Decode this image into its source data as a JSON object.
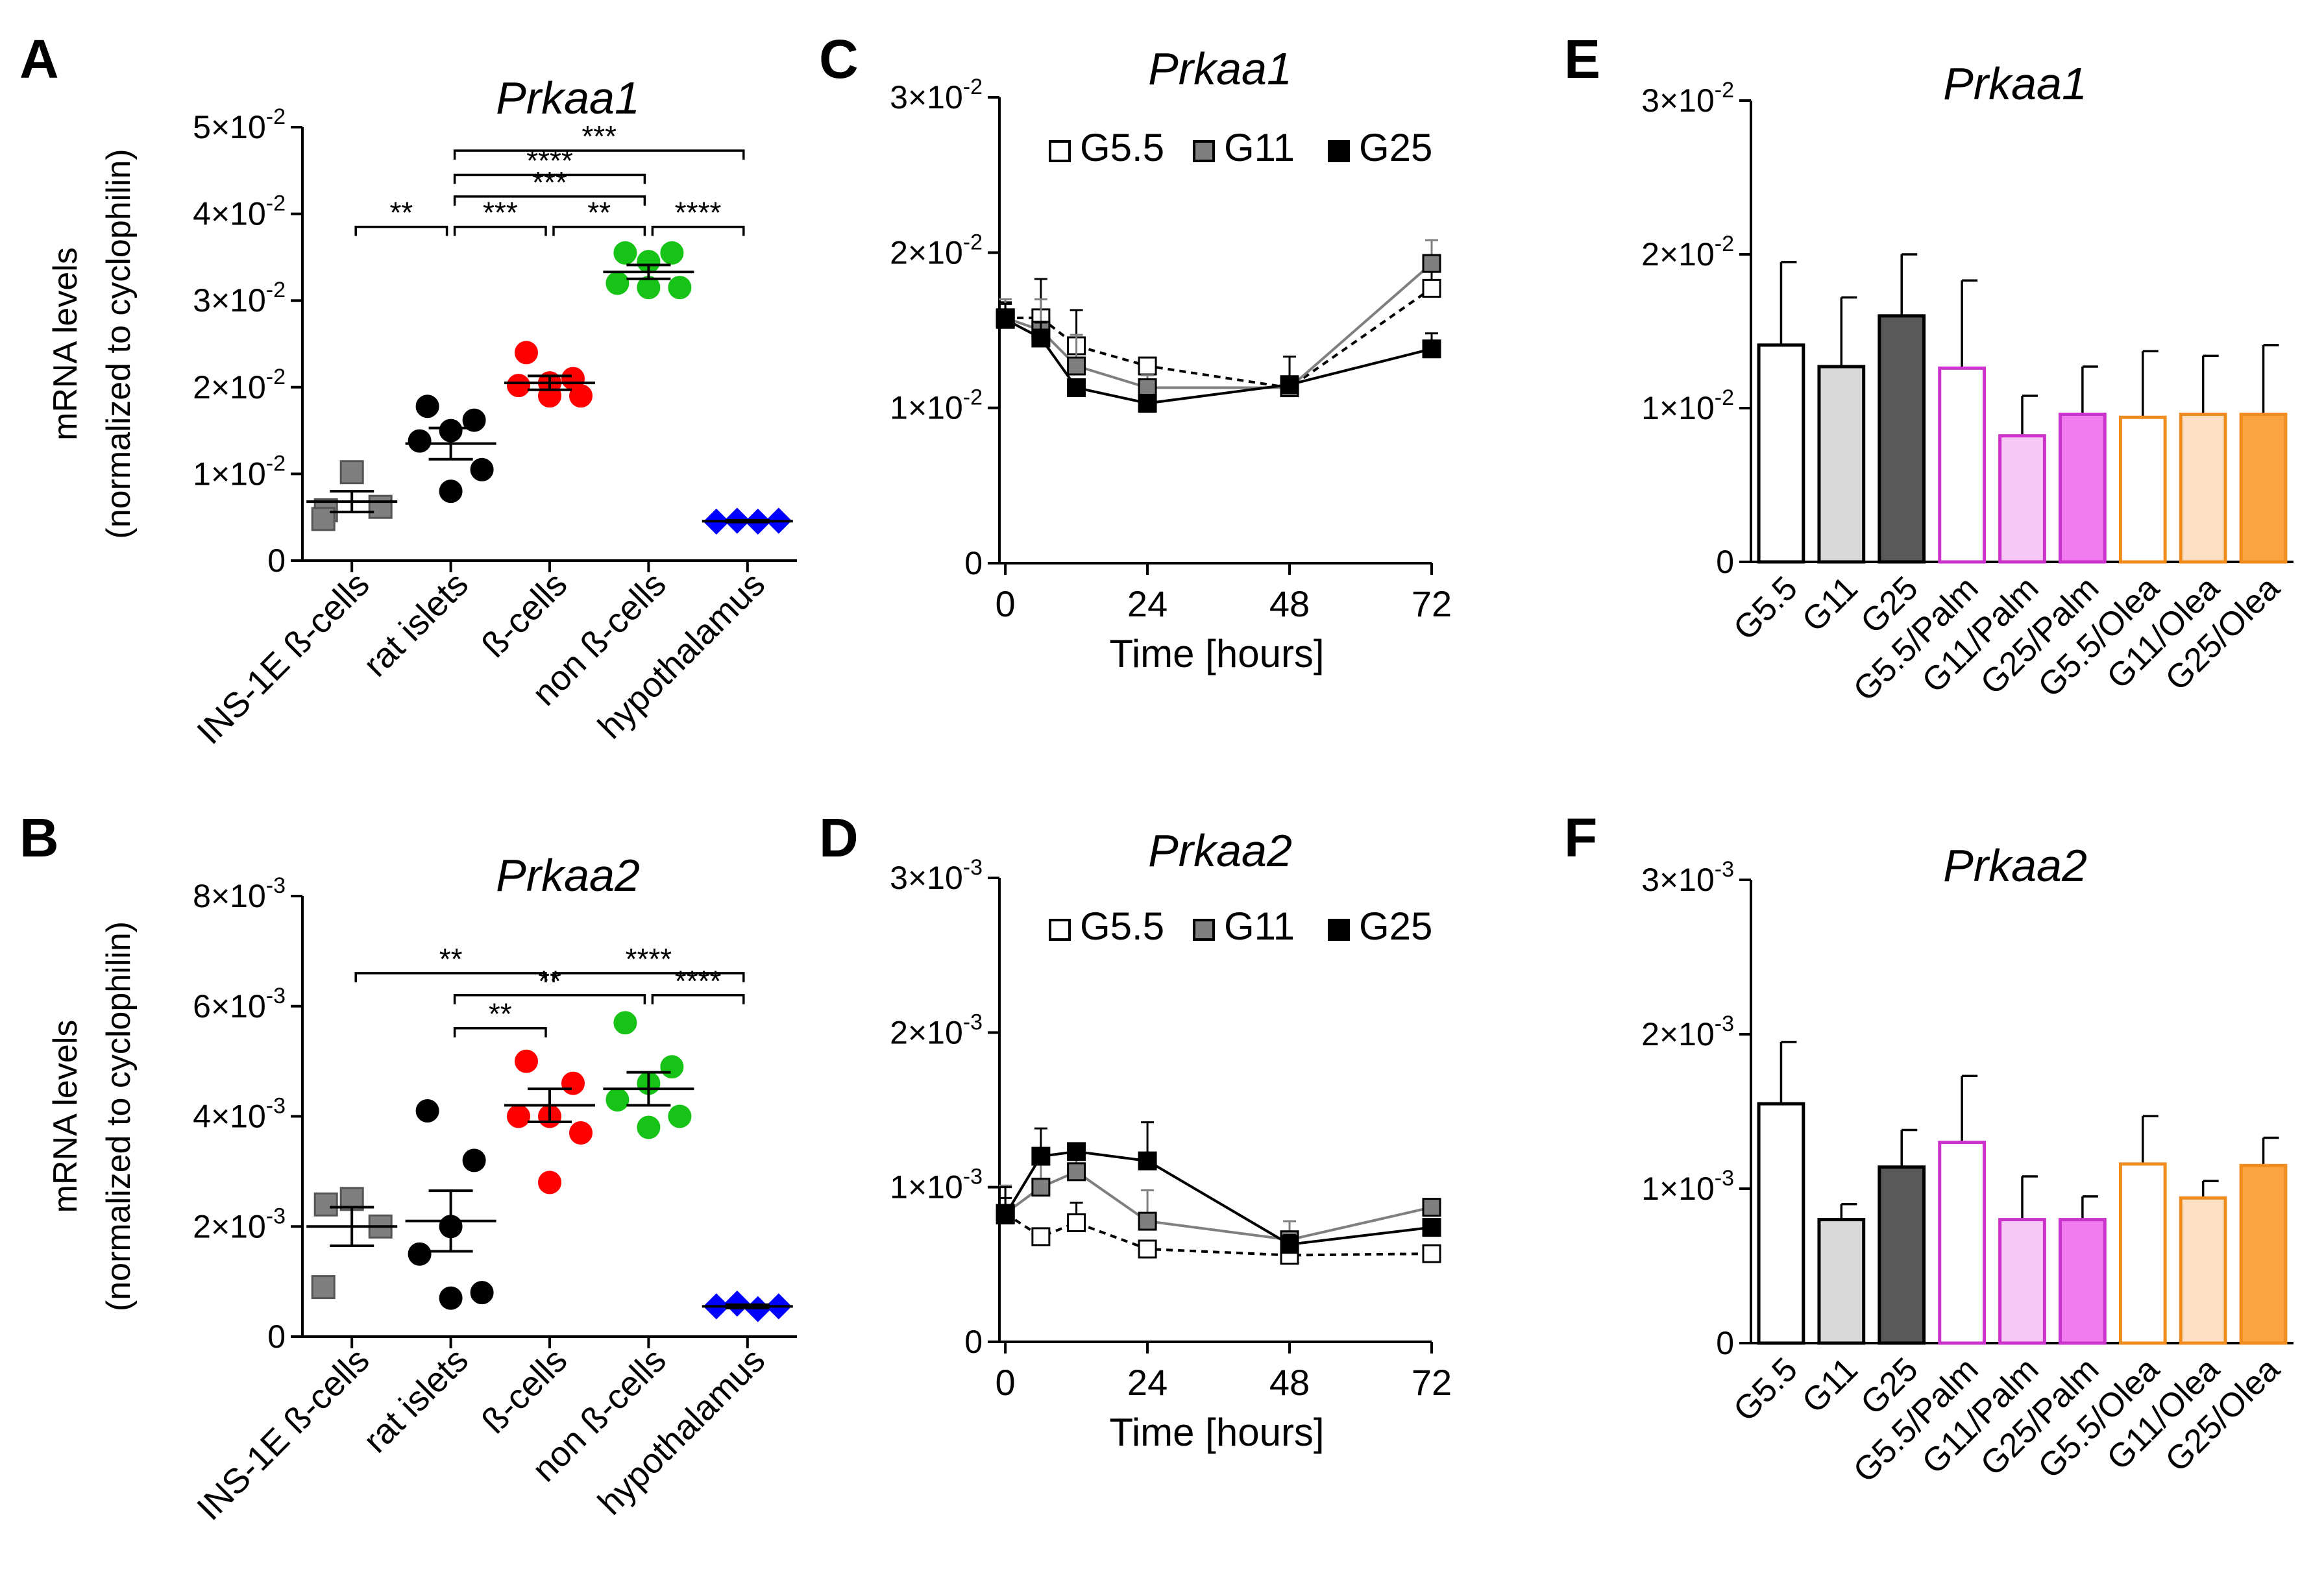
{
  "colors": {
    "axis": "#000000",
    "gray_marker": "#7f7f7f",
    "black_marker": "#000000",
    "red_marker": "#ff0000",
    "green_marker": "#16c316",
    "blue_marker": "#0000ff",
    "bar_G5_5": "#ffffff",
    "bar_G11": "#d9d9d9",
    "bar_G25": "#595959",
    "palm_edge": "#cc33cc",
    "palm_light": "#f5c8f5",
    "palm_mid": "#f07cf0",
    "olea_edge": "#f08c1e",
    "olea_light": "#fde0c4",
    "olea_mid": "#f9a441"
  },
  "chart_data": [
    {
      "panel": "A",
      "type": "scatter",
      "title": "Prkaa1",
      "ylabel_line1": "mRNA levels",
      "ylabel_line2": "(normalized to cyclophilin)",
      "ylim": [
        0,
        0.05
      ],
      "yticks": [
        {
          "value": 0,
          "mant": "0",
          "exp": ""
        },
        {
          "value": 0.01,
          "mant": "1×10",
          "exp": "-2"
        },
        {
          "value": 0.02,
          "mant": "2×10",
          "exp": "-2"
        },
        {
          "value": 0.03,
          "mant": "3×10",
          "exp": "-2"
        },
        {
          "value": 0.04,
          "mant": "4×10",
          "exp": "-2"
        },
        {
          "value": 0.05,
          "mant": "5×10",
          "exp": "-2"
        }
      ],
      "categories": [
        "INS-1E ß-cells",
        "rat islets",
        "ß-cells",
        "non ß-cells",
        "hypothalamus"
      ],
      "groups": [
        {
          "name": "INS-1E ß-cells",
          "marker": "square",
          "color": "#7f7f7f",
          "points": [
            0.0102,
            0.0058,
            0.0062,
            0.0048
          ],
          "mean": 0.0068,
          "sem": 0.0012
        },
        {
          "name": "rat islets",
          "marker": "circle",
          "color": "#000000",
          "points": [
            0.0178,
            0.0162,
            0.015,
            0.0138,
            0.0105,
            0.008
          ],
          "mean": 0.0135,
          "sem": 0.0018
        },
        {
          "name": "ß-cells",
          "marker": "circle",
          "color": "#ff0000",
          "points": [
            0.024,
            0.021,
            0.0205,
            0.0202,
            0.019,
            0.019
          ],
          "mean": 0.0205,
          "sem": 0.0008
        },
        {
          "name": "non ß-cells",
          "marker": "circle",
          "color": "#16c316",
          "points": [
            0.0355,
            0.0355,
            0.0345,
            0.032,
            0.0315,
            0.0315
          ],
          "mean": 0.0333,
          "sem": 0.0008
        },
        {
          "name": "hypothalamus",
          "marker": "diamond",
          "color": "#0000ff",
          "points": [
            0.0045,
            0.0046,
            0.0045,
            0.0046
          ],
          "mean": 0.00455,
          "sem": 0.0001
        }
      ],
      "brackets": [
        {
          "from": 0,
          "to": 1,
          "label": "**",
          "level": 0.0385
        },
        {
          "from": 1,
          "to": 2,
          "label": "***",
          "level": 0.0385
        },
        {
          "from": 2,
          "to": 3,
          "label": "**",
          "level": 0.0385
        },
        {
          "from": 3,
          "to": 4,
          "label": "****",
          "level": 0.0385
        },
        {
          "from": 1,
          "to": 3,
          "label": "***",
          "level": 0.042
        },
        {
          "from": 1,
          "to": 3,
          "label": "****",
          "level": 0.0445
        },
        {
          "from": 1,
          "to": 4,
          "label": "***",
          "level": 0.0473
        }
      ]
    },
    {
      "panel": "B",
      "type": "scatter",
      "title": "Prkaa2",
      "ylabel_line1": "mRNA levels",
      "ylabel_line2": "(normalized to cyclophilin)",
      "ylim": [
        0,
        0.008
      ],
      "yticks": [
        {
          "value": 0,
          "mant": "0",
          "exp": ""
        },
        {
          "value": 0.002,
          "mant": "2×10",
          "exp": "-3"
        },
        {
          "value": 0.004,
          "mant": "4×10",
          "exp": "-3"
        },
        {
          "value": 0.006,
          "mant": "6×10",
          "exp": "-3"
        },
        {
          "value": 0.008,
          "mant": "8×10",
          "exp": "-3"
        }
      ],
      "categories": [
        "INS-1E ß-cells",
        "rat islets",
        "ß-cells",
        "non ß-cells",
        "hypothalamus"
      ],
      "groups": [
        {
          "name": "INS-1E ß-cells",
          "marker": "square",
          "color": "#7f7f7f",
          "points": [
            0.0025,
            0.0024,
            0.002,
            0.0009
          ],
          "mean": 0.002,
          "sem": 0.00035
        },
        {
          "name": "rat islets",
          "marker": "circle",
          "color": "#000000",
          "points": [
            0.0041,
            0.0032,
            0.002,
            0.0015,
            0.0008,
            0.0007
          ],
          "mean": 0.0021,
          "sem": 0.00055
        },
        {
          "name": "ß-cells",
          "marker": "circle",
          "color": "#ff0000",
          "points": [
            0.005,
            0.0046,
            0.004,
            0.004,
            0.0037,
            0.0028
          ],
          "mean": 0.0042,
          "sem": 0.0003
        },
        {
          "name": "non ß-cells",
          "marker": "circle",
          "color": "#16c316",
          "points": [
            0.0057,
            0.0049,
            0.0046,
            0.0043,
            0.004,
            0.0038
          ],
          "mean": 0.0045,
          "sem": 0.0003
        },
        {
          "name": "hypothalamus",
          "marker": "diamond",
          "color": "#0000ff",
          "points": [
            0.00055,
            0.0006,
            0.0005,
            0.00055
          ],
          "mean": 0.00055,
          "sem": 3e-05
        }
      ],
      "brackets": [
        {
          "from": 2,
          "to": 4,
          "label": "****",
          "level": 0.0066
        },
        {
          "from": 0,
          "to": 2,
          "label": "**",
          "level": 0.0066
        },
        {
          "from": 1,
          "to": 3,
          "label": "**",
          "level": 0.0062
        },
        {
          "from": 3,
          "to": 4,
          "label": "****",
          "level": 0.0062
        },
        {
          "from": 1,
          "to": 2,
          "label": "**",
          "level": 0.0056
        }
      ]
    },
    {
      "panel": "C",
      "type": "line",
      "title": "Prkaa1",
      "xlabel": "Time [hours]",
      "xlim": [
        -1,
        72
      ],
      "xticks": [
        0,
        24,
        48,
        72
      ],
      "ylim": [
        0,
        0.03
      ],
      "yticks": [
        {
          "value": 0,
          "mant": "0",
          "exp": ""
        },
        {
          "value": 0.01,
          "mant": "1×10",
          "exp": "-2"
        },
        {
          "value": 0.02,
          "mant": "2×10",
          "exp": "-2"
        },
        {
          "value": 0.03,
          "mant": "3×10",
          "exp": "-2"
        }
      ],
      "x": [
        0,
        6,
        12,
        24,
        48,
        72
      ],
      "series": [
        {
          "name": "G5.5",
          "marker_fill": "#ffffff",
          "line": "#000000",
          "dash": "10,8",
          "values": [
            0.0158,
            0.0158,
            0.014,
            0.0127,
            0.0113,
            0.0177
          ],
          "err": [
            0.001,
            0.0025,
            0.0023,
            0.0005,
            0.0007,
            0.0018
          ]
        },
        {
          "name": "G11",
          "marker_fill": "#7f7f7f",
          "line": "#7f7f7f",
          "dash": "",
          "values": [
            0.0158,
            0.015,
            0.0127,
            0.0113,
            0.0113,
            0.0193
          ],
          "err": [
            0.0012,
            0.002,
            0.002,
            0.0008,
            0.0007,
            0.0015
          ]
        },
        {
          "name": "G25",
          "marker_fill": "#000000",
          "line": "#000000",
          "dash": "",
          "values": [
            0.0157,
            0.0145,
            0.0113,
            0.0103,
            0.0115,
            0.0138
          ],
          "err": [
            0.001,
            0.001,
            0.0005,
            0.0003,
            0.0018,
            0.001
          ]
        }
      ]
    },
    {
      "panel": "D",
      "type": "line",
      "title": "Prkaa2",
      "xlabel": "Time [hours]",
      "xlim": [
        -1,
        72
      ],
      "xticks": [
        0,
        24,
        48,
        72
      ],
      "ylim": [
        0,
        0.003
      ],
      "yticks": [
        {
          "value": 0,
          "mant": "0",
          "exp": ""
        },
        {
          "value": 0.001,
          "mant": "1×10",
          "exp": "-3"
        },
        {
          "value": 0.002,
          "mant": "2×10",
          "exp": "-3"
        },
        {
          "value": 0.003,
          "mant": "3×10",
          "exp": "-3"
        }
      ],
      "x": [
        0,
        6,
        12,
        24,
        48,
        72
      ],
      "series": [
        {
          "name": "G5.5",
          "marker_fill": "#ffffff",
          "line": "#000000",
          "dash": "10,8",
          "values": [
            0.00083,
            0.00068,
            0.00077,
            0.0006,
            0.00056,
            0.00057
          ],
          "err": [
            0.0001,
            5e-05,
            0.00013,
            5e-05,
            3e-05,
            3e-05
          ]
        },
        {
          "name": "G11",
          "marker_fill": "#7f7f7f",
          "line": "#7f7f7f",
          "dash": "",
          "values": [
            0.00083,
            0.001,
            0.0011,
            0.00078,
            0.00066,
            0.00087
          ],
          "err": [
            0.00018,
            0.00022,
            0.00015,
            0.0002,
            0.00012,
            5e-05
          ]
        },
        {
          "name": "G25",
          "marker_fill": "#000000",
          "line": "#000000",
          "dash": "",
          "values": [
            0.00082,
            0.0012,
            0.00123,
            0.00117,
            0.00063,
            0.00074
          ],
          "err": [
            0.00018,
            0.00018,
            5e-05,
            0.00025,
            6e-05,
            5e-05
          ]
        }
      ]
    },
    {
      "panel": "E",
      "type": "bar",
      "title": "Prkaa1",
      "ylim": [
        0,
        0.03
      ],
      "yticks": [
        {
          "value": 0,
          "mant": "0",
          "exp": ""
        },
        {
          "value": 0.01,
          "mant": "1×10",
          "exp": "-2"
        },
        {
          "value": 0.02,
          "mant": "2×10",
          "exp": "-2"
        },
        {
          "value": 0.03,
          "mant": "3×10",
          "exp": "-2"
        }
      ],
      "categories": [
        "G5.5",
        "G11",
        "G25",
        "G5.5/Palm",
        "G11/Palm",
        "G25/Palm",
        "G5.5/Olea",
        "G11/Olea",
        "G25/Olea"
      ],
      "values": [
        0.0141,
        0.0127,
        0.016,
        0.0126,
        0.0082,
        0.0096,
        0.0094,
        0.0096,
        0.0096
      ],
      "err": [
        0.0054,
        0.0045,
        0.004,
        0.0057,
        0.0026,
        0.0031,
        0.0043,
        0.0038,
        0.0045
      ],
      "fills": [
        "#ffffff",
        "#d9d9d9",
        "#595959",
        "#ffffff",
        "#f5c8f5",
        "#f07cf0",
        "#ffffff",
        "#fde0c4",
        "#f9a441"
      ],
      "edges": [
        "#000000",
        "#000000",
        "#000000",
        "#cc33cc",
        "#cc33cc",
        "#cc33cc",
        "#f08c1e",
        "#f08c1e",
        "#f08c1e"
      ]
    },
    {
      "panel": "F",
      "type": "bar",
      "title": "Prkaa2",
      "ylim": [
        0,
        0.003
      ],
      "yticks": [
        {
          "value": 0,
          "mant": "0",
          "exp": ""
        },
        {
          "value": 0.001,
          "mant": "1×10",
          "exp": "-3"
        },
        {
          "value": 0.002,
          "mant": "2×10",
          "exp": "-3"
        },
        {
          "value": 0.003,
          "mant": "3×10",
          "exp": "-3"
        }
      ],
      "categories": [
        "G5.5",
        "G11",
        "G25",
        "G5.5/Palm",
        "G11/Palm",
        "G25/Palm",
        "G5.5/Olea",
        "G11/Olea",
        "G25/Olea"
      ],
      "values": [
        0.00155,
        0.0008,
        0.00114,
        0.0013,
        0.0008,
        0.0008,
        0.00116,
        0.00094,
        0.00115
      ],
      "err": [
        0.0004,
        0.0001,
        0.00024,
        0.00043,
        0.00028,
        0.00015,
        0.00031,
        0.00011,
        0.00018
      ],
      "fills": [
        "#ffffff",
        "#d9d9d9",
        "#595959",
        "#ffffff",
        "#f5c8f5",
        "#f07cf0",
        "#ffffff",
        "#fde0c4",
        "#f9a441"
      ],
      "edges": [
        "#000000",
        "#000000",
        "#000000",
        "#cc33cc",
        "#cc33cc",
        "#cc33cc",
        "#f08c1e",
        "#f08c1e",
        "#f08c1e"
      ]
    }
  ]
}
